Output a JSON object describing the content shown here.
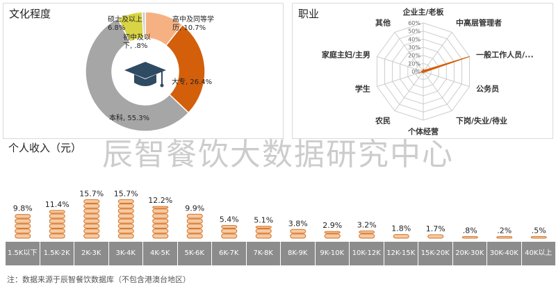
{
  "watermark": "辰智餐饮大数据研究中心",
  "footnote": "注：数据来源于辰智餐饮数据库（不包含港澳台地区）",
  "colors": {
    "orange": "#d35f0b",
    "gray": "#a6a6a6",
    "peach": "#f6b183",
    "yellow": "#d8d445",
    "coin_fill": "#f4caa3",
    "coin_stroke": "#d97a30",
    "axis_bg": "#8c8c8c",
    "icon": "#2f4a63"
  },
  "icon": "graduation-cap-icon",
  "chart_data": [
    {
      "type": "pie",
      "title": "文化程度",
      "slices": [
        {
          "label": "高中及同等学历",
          "value": 10.7,
          "label_text": "高中及同等学\n历, 10.7%"
        },
        {
          "label": "大专",
          "value": 26.4,
          "label_text": "大专, 26.4%"
        },
        {
          "label": "本科",
          "value": 55.3,
          "label_text": "本科, 55.3%"
        },
        {
          "label": "硕士及以上",
          "value": 6.8,
          "label_text": "硕士及以上\n6.8%"
        },
        {
          "label": "初中及以下",
          "value": 0.8,
          "label_text": "初中及以\n下, .8%"
        }
      ]
    },
    {
      "type": "radar",
      "title": "职业",
      "axes": [
        "企业主/老板",
        "中高层管理者",
        "一般工作人员/...",
        "公务员",
        "下岗/失业/待业",
        "个体经营",
        "农民",
        "学生",
        "家庭主妇/主男",
        "其他"
      ],
      "values": [
        3,
        2,
        60,
        2,
        1,
        2,
        1,
        3,
        2,
        1
      ],
      "ticks": [
        "0%",
        "10%",
        "20%",
        "30%",
        "40%",
        "50%",
        "60%"
      ],
      "max": 60
    },
    {
      "type": "bar",
      "title": "个人收入（元）",
      "categories": [
        "1.5K以下",
        "1.5K-2K",
        "2K-3K",
        "3K-4K",
        "4K-5K",
        "5K-6K",
        "6K-7K",
        "7K-8K",
        "8K-9K",
        "9K-10K",
        "10K-12K",
        "12K-15K",
        "15K-20K",
        "20K-30K",
        "30K-40K",
        "40K以上"
      ],
      "values": [
        9.8,
        11.4,
        15.7,
        15.7,
        12.2,
        9.9,
        5.4,
        5.1,
        3.8,
        2.9,
        3.2,
        1.8,
        1.7,
        0.8,
        0.2,
        0.5
      ],
      "value_labels": [
        "9.8%",
        "11.4%",
        "15.7%",
        "15.7%",
        "12.2%",
        "9.9%",
        "5.4%",
        "5.1%",
        "3.8%",
        "2.9%",
        "3.2%",
        "1.8%",
        "1.7%",
        ".8%",
        ".2%",
        ".5%"
      ]
    }
  ]
}
